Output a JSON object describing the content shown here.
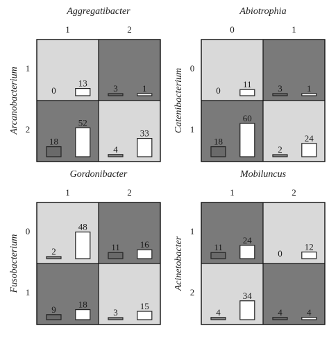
{
  "chart_data": [
    {
      "type": "bar",
      "title": "Aggregatibacter",
      "col_categories": [
        "1",
        "2"
      ],
      "row_label": "Arcanobacterium",
      "row_categories": [
        "1",
        "2"
      ],
      "cell_shading": [
        [
          "light",
          "dark"
        ],
        [
          "dark",
          "light"
        ]
      ],
      "cells": [
        [
          {
            "values": [
              0,
              13
            ]
          },
          {
            "values": [
              3,
              1
            ]
          }
        ],
        [
          {
            "values": [
              18,
              52
            ]
          },
          {
            "values": [
              4,
              33
            ]
          }
        ]
      ]
    },
    {
      "type": "bar",
      "title": "Abiotrophia",
      "col_categories": [
        "0",
        "1"
      ],
      "row_label": "Catenibacterium",
      "row_categories": [
        "0",
        "1"
      ],
      "cell_shading": [
        [
          "light",
          "dark"
        ],
        [
          "dark",
          "light"
        ]
      ],
      "cells": [
        [
          {
            "values": [
              0,
              11
            ]
          },
          {
            "values": [
              3,
              1
            ]
          }
        ],
        [
          {
            "values": [
              18,
              60
            ]
          },
          {
            "values": [
              2,
              24
            ]
          }
        ]
      ]
    },
    {
      "type": "bar",
      "title": "Gordonibacter",
      "col_categories": [
        "1",
        "2"
      ],
      "row_label": "Fusobacterium",
      "row_categories": [
        "0",
        "1"
      ],
      "cell_shading": [
        [
          "light",
          "dark"
        ],
        [
          "dark",
          "light"
        ]
      ],
      "cells": [
        [
          {
            "values": [
              2,
              48
            ]
          },
          {
            "values": [
              11,
              16
            ]
          }
        ],
        [
          {
            "values": [
              9,
              18
            ]
          },
          {
            "values": [
              3,
              15
            ]
          }
        ]
      ]
    },
    {
      "type": "bar",
      "title": "Mobiluncus",
      "col_categories": [
        "1",
        "2"
      ],
      "row_label": "Acinetobacter",
      "row_categories": [
        "1",
        "2"
      ],
      "cell_shading": [
        [
          "dark",
          "light"
        ],
        [
          "light",
          "dark"
        ]
      ],
      "cells": [
        [
          {
            "values": [
              11,
              24
            ]
          },
          {
            "values": [
              0,
              12
            ]
          }
        ],
        [
          {
            "values": [
              4,
              34
            ]
          },
          {
            "values": [
              4,
              4
            ]
          }
        ]
      ]
    }
  ],
  "colors": {
    "light_cell": "#d9d9d9",
    "dark_cell": "#7a7a7a",
    "bar_outline": "#222222",
    "bar_white": "#ffffff",
    "bar_dark_fill_on_light": "#8a8a8a",
    "bar_dark_fill_on_dark": "#6a6a6a"
  }
}
